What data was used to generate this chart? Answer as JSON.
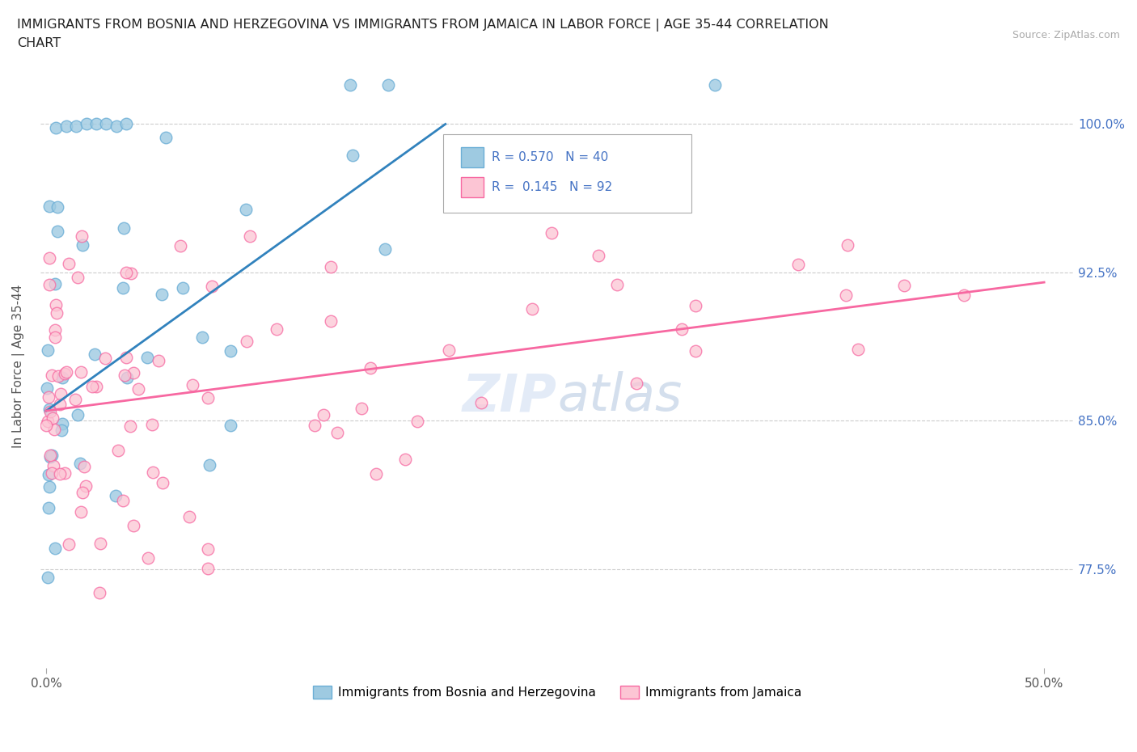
{
  "title_line1": "IMMIGRANTS FROM BOSNIA AND HERZEGOVINA VS IMMIGRANTS FROM JAMAICA IN LABOR FORCE | AGE 35-44 CORRELATION",
  "title_line2": "CHART",
  "source": "Source: ZipAtlas.com",
  "ylabel": "In Labor Force | Age 35-44",
  "ytick_labels": [
    "77.5%",
    "85.0%",
    "92.5%",
    "100.0%"
  ],
  "ytick_values": [
    0.775,
    0.85,
    0.925,
    1.0
  ],
  "xlim": [
    -0.003,
    0.515
  ],
  "ylim": [
    0.725,
    1.03
  ],
  "blue_color": "#6baed6",
  "blue_fill": "#9ecae1",
  "pink_color": "#f768a1",
  "pink_fill": "#fcc5d4",
  "trend_blue": "#3182bd",
  "trend_pink": "#f768a1",
  "R_blue": 0.57,
  "N_blue": 40,
  "R_pink": 0.145,
  "N_pink": 92,
  "legend_label_color": "#4472c4",
  "grid_color": "#cccccc",
  "watermark_color": "#c8d8f0",
  "blue_trend_x": [
    0.0,
    0.2
  ],
  "blue_trend_y": [
    0.855,
    1.0
  ],
  "pink_trend_x": [
    0.0,
    0.5
  ],
  "pink_trend_y": [
    0.855,
    0.92
  ]
}
